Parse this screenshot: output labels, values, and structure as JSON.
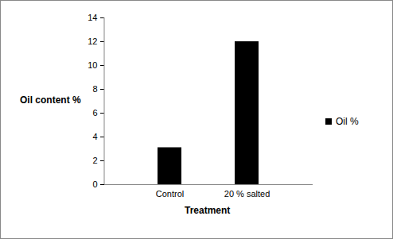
{
  "chart_data": {
    "type": "bar",
    "x_label": "Treatment",
    "y_label": "Oil content %",
    "categories": [
      "Control",
      "20 % salted"
    ],
    "series": [
      {
        "name": "Oil %",
        "color": "#000000",
        "values": [
          3.1,
          12
        ]
      }
    ],
    "ylim": [
      0,
      14
    ],
    "yticks": [
      0,
      2,
      4,
      6,
      8,
      10,
      12,
      14
    ],
    "grid": false,
    "legend": "right"
  }
}
